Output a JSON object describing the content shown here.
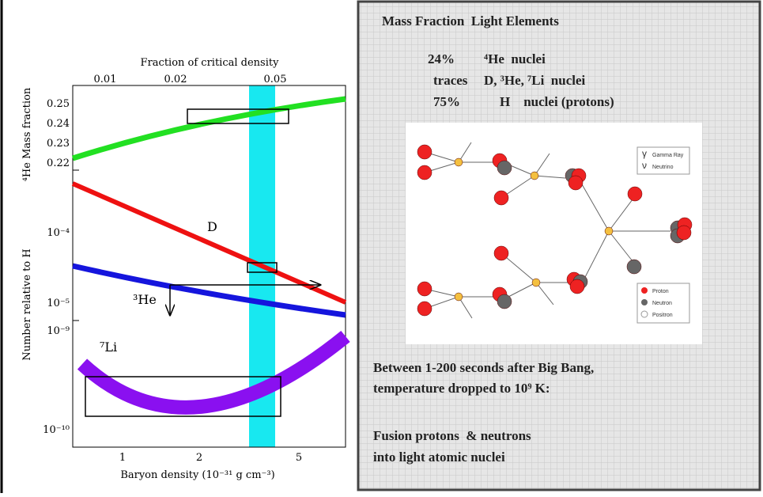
{
  "figure": {
    "top_axis_label": "Fraction of critical density",
    "top_ticks": [
      "0.01",
      "0.02",
      "0.05"
    ],
    "bottom_ticks": [
      "1",
      "2",
      "5"
    ],
    "x_axis_label": "Baryon density (10⁻³¹ g cm⁻³)",
    "he_axis_label": "⁴He Mass fraction",
    "he_ticks": [
      "0.25",
      "0.24",
      "0.23",
      "0.22"
    ],
    "number_axis_label": "Number relative to H",
    "number_ticks": [
      "10⁻⁴",
      "10⁻⁵",
      "10⁻⁹",
      "10⁻¹⁰"
    ],
    "curve_labels": [
      "D",
      "³He",
      "⁷Li"
    ]
  },
  "panel": {
    "title": "Mass Fraction  Light Elements",
    "abundances": [
      {
        "amount": "24%",
        "species": "⁴He  nuclei"
      },
      {
        "amount": "traces",
        "species": "D, ³He, ⁷Li  nuclei"
      },
      {
        "amount": "75%",
        "species": "H    nuclei (protons)"
      }
    ],
    "diagram_symbols": [
      "γ",
      "ν"
    ],
    "diagram_legend": [
      "Gamma Ray",
      "Neutrino",
      "Proton",
      "Neutron",
      "Positron"
    ],
    "notes": [
      "Between 1-200 seconds after Big Bang,",
      "temperature dropped to 10⁹ K:",
      "Fusion protons  & neutrons",
      "into light atomic nuclei"
    ]
  }
}
